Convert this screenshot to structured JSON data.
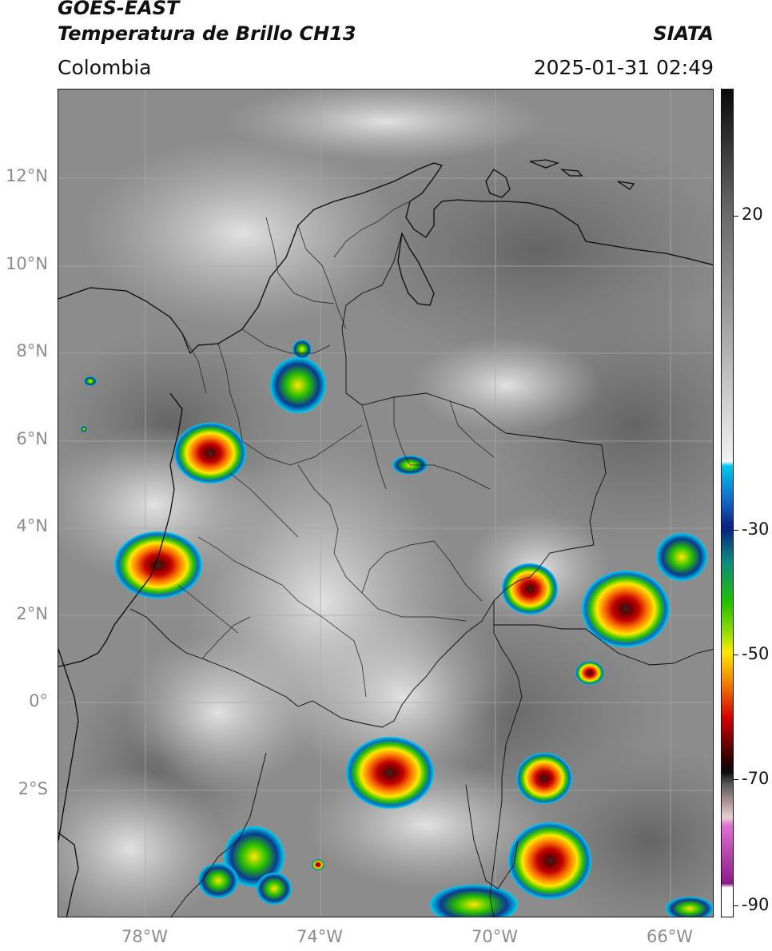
{
  "header": {
    "title_line1": "GOES-EAST",
    "title_line2": "Temperatura de Brillo CH13",
    "brand": "SIATA",
    "region": "Colombia",
    "timestamp": "2025-01-31 02:49"
  },
  "map": {
    "lat_labels": [
      "12°N",
      "10°N",
      "8°N",
      "6°N",
      "4°N",
      "2°N",
      "0°",
      "2°S"
    ],
    "lon_labels": [
      "78°W",
      "74°W",
      "70°W",
      "66°W"
    ]
  },
  "colorbar": {
    "labels": [
      "20",
      "-30",
      "-50",
      "-70",
      "-90"
    ],
    "colors": {
      "white_band": "#ffffff",
      "purple_band": "#8a1a8a",
      "pink_band": "#e070d0",
      "gray_ramp_dark": "#0a0a0a",
      "gray_ramp_light": "#f2f2f2",
      "red": "#d10000",
      "orange": "#f07a00",
      "yellow": "#ffe800",
      "green": "#22c000",
      "navy": "#0a2080",
      "blue": "#1560c0",
      "cyan": "#00c8f0"
    }
  }
}
